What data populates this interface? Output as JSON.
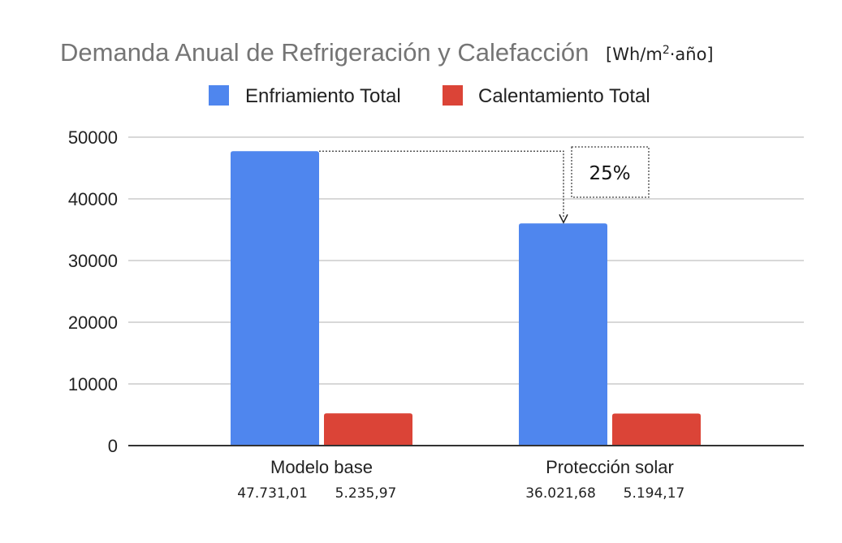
{
  "chart_data": {
    "type": "bar",
    "title": "Demanda Anual de Refrigeración y Calefacción",
    "unit": {
      "prefix": "[Wh/m",
      "superscript": "2",
      "suffix": "·año]"
    },
    "categories": [
      "Modelo base",
      "Protección solar"
    ],
    "series": [
      {
        "name": "Enfriamiento Total",
        "color": "#4f86ee",
        "values": [
          47731.01,
          36021.68
        ],
        "value_labels": [
          "47.731,01",
          "36.021,68"
        ]
      },
      {
        "name": "Calentamiento Total",
        "color": "#db4437",
        "values": [
          5235.97,
          5194.17
        ],
        "value_labels": [
          "5.235,97",
          "5.194,17"
        ]
      }
    ],
    "ylim": [
      0,
      50000
    ],
    "yticks": [
      0,
      10000,
      20000,
      30000,
      40000,
      50000
    ],
    "ytick_labels": [
      "0",
      "10000",
      "20000",
      "30000",
      "40000",
      "50000"
    ],
    "xlabel": "",
    "ylabel": "",
    "grid": true,
    "legend_position": "top",
    "annotation": {
      "text": "25%",
      "from": {
        "category": "Modelo base",
        "series": "Enfriamiento Total"
      },
      "to": {
        "category": "Protección solar",
        "series": "Enfriamiento Total"
      }
    }
  }
}
